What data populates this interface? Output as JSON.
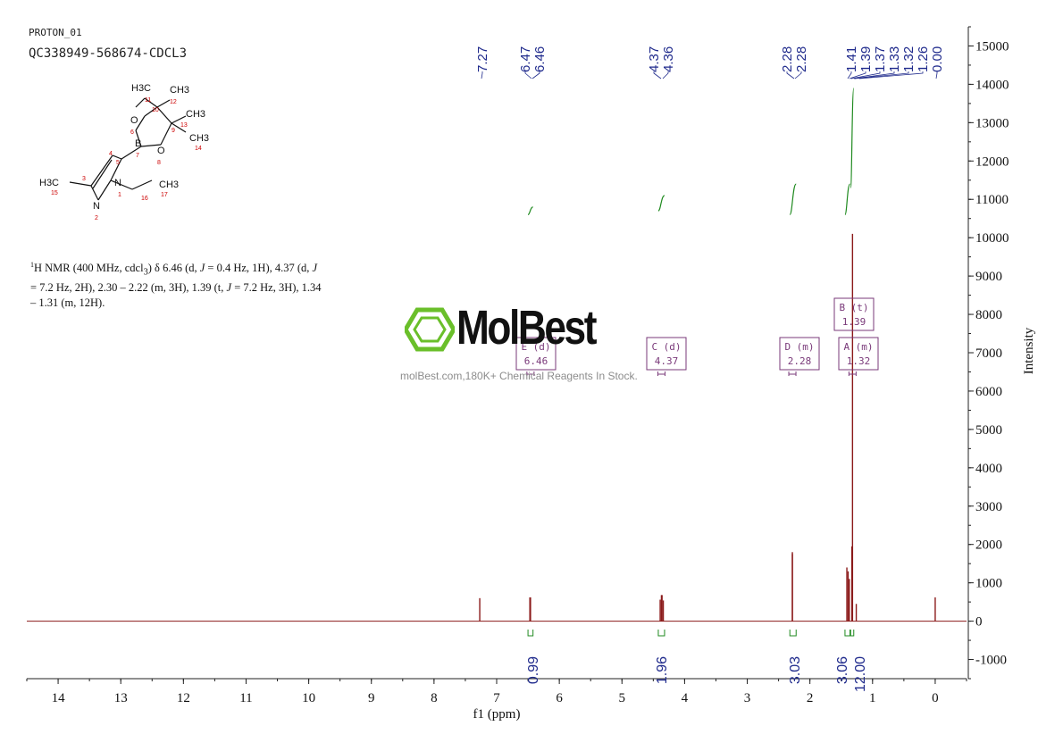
{
  "header": {
    "line1": "PROTON_01",
    "line2": "QC338949-568674-CDCL3"
  },
  "molecule": {
    "labels": [
      "H3C",
      "11",
      "CH3",
      "12",
      "10",
      "O",
      "6",
      "CH3",
      "13",
      "9",
      "B",
      "7",
      "CH3",
      "14",
      "O",
      "8",
      "4",
      "5",
      "H3C",
      "15",
      "3",
      "N",
      "1",
      "CH3",
      "16",
      "17",
      "N",
      "2"
    ]
  },
  "nmr_text": {
    "nucleus_sup": "1",
    "body_html": "H NMR (400 MHz, cdcl<sub>3</sub>) δ 6.46 (d, <i>J</i> = 0.4 Hz, 1H), 4.37 (d, <i>J</i> = 7.2 Hz, 2H), 2.30 – 2.22 (m, 3H), 1.39 (t, <i>J</i> = 7.2 Hz, 3H), 1.34 – 1.31 (m, 12H)."
  },
  "watermark": {
    "brand": "MolBest",
    "tagline": "molBest.com,180K+ Chemical Reagents In Stock."
  },
  "colors": {
    "spectrum": "#8b1a1a",
    "integral": "#1f8a1f",
    "peak_label": "#1f2a8c",
    "multiplet_box": "#7a3a7a",
    "logo_green": "#6abf2a",
    "axis": "#222222"
  },
  "chart_data": {
    "type": "line",
    "xlabel": "f1 (ppm)",
    "ylabel": "Intensity",
    "xlim": [
      14.5,
      -0.5
    ],
    "ylim": [
      -1500,
      15500
    ],
    "x_ticks": [
      14,
      13,
      12,
      11,
      10,
      9,
      8,
      7,
      6,
      5,
      4,
      3,
      2,
      1,
      0
    ],
    "y_ticks": [
      15000,
      14000,
      13000,
      12000,
      11000,
      10000,
      9000,
      8000,
      7000,
      6000,
      5000,
      4000,
      3000,
      2000,
      1000,
      0,
      -1000
    ],
    "peaks": [
      {
        "ppm": 7.27,
        "height": 600
      },
      {
        "ppm": 6.47,
        "height": 620
      },
      {
        "ppm": 6.46,
        "height": 620
      },
      {
        "ppm": 4.39,
        "height": 560
      },
      {
        "ppm": 4.37,
        "height": 680
      },
      {
        "ppm": 4.36,
        "height": 680
      },
      {
        "ppm": 4.34,
        "height": 540
      },
      {
        "ppm": 2.28,
        "height": 1800
      },
      {
        "ppm": 2.28,
        "height": 1750
      },
      {
        "ppm": 1.41,
        "height": 1400
      },
      {
        "ppm": 1.39,
        "height": 1300
      },
      {
        "ppm": 1.37,
        "height": 1100
      },
      {
        "ppm": 1.33,
        "height": 1950
      },
      {
        "ppm": 1.32,
        "height": 10100
      },
      {
        "ppm": 1.26,
        "height": 450
      },
      {
        "ppm": 0.0,
        "height": 620
      }
    ],
    "peak_labels": [
      {
        "group": 1,
        "text": "7.27"
      },
      {
        "group": 2,
        "text": "6.47"
      },
      {
        "group": 2,
        "text": "6.46"
      },
      {
        "group": 3,
        "text": "4.37"
      },
      {
        "group": 3,
        "text": "4.36"
      },
      {
        "group": 4,
        "text": "2.28"
      },
      {
        "group": 4,
        "text": "2.28"
      },
      {
        "group": 5,
        "text": "1.41"
      },
      {
        "group": 5,
        "text": "1.39"
      },
      {
        "group": 5,
        "text": "1.37"
      },
      {
        "group": 5,
        "text": "1.33"
      },
      {
        "group": 5,
        "text": "1.32"
      },
      {
        "group": 5,
        "text": "1.26"
      },
      {
        "group": 5,
        "text": "0.00"
      }
    ],
    "integrals": [
      {
        "from": 6.5,
        "to": 6.42,
        "value": "0.99",
        "base": 10600,
        "rise": 200
      },
      {
        "from": 4.42,
        "to": 4.32,
        "value": "1.96",
        "base": 10700,
        "rise": 400
      },
      {
        "from": 2.32,
        "to": 2.22,
        "value": "3.03",
        "base": 10600,
        "rise": 800
      },
      {
        "from": 1.44,
        "to": 1.36,
        "value": "3.06",
        "base": 10600,
        "rise": 800
      },
      {
        "from": 1.35,
        "to": 1.3,
        "value": "12.00",
        "base": 11300,
        "rise": 2600
      }
    ],
    "multiplets": [
      {
        "label": "E (d)",
        "shift": "6.46",
        "ppm": 6.46
      },
      {
        "label": "C (d)",
        "shift": "4.37",
        "ppm": 4.37
      },
      {
        "label": "D (m)",
        "shift": "2.28",
        "ppm": 2.28
      },
      {
        "label": "A (m)",
        "shift": "1.32",
        "ppm": 1.32
      },
      {
        "label": "B (t)",
        "shift": "1.39",
        "ppm": 1.39
      }
    ]
  }
}
